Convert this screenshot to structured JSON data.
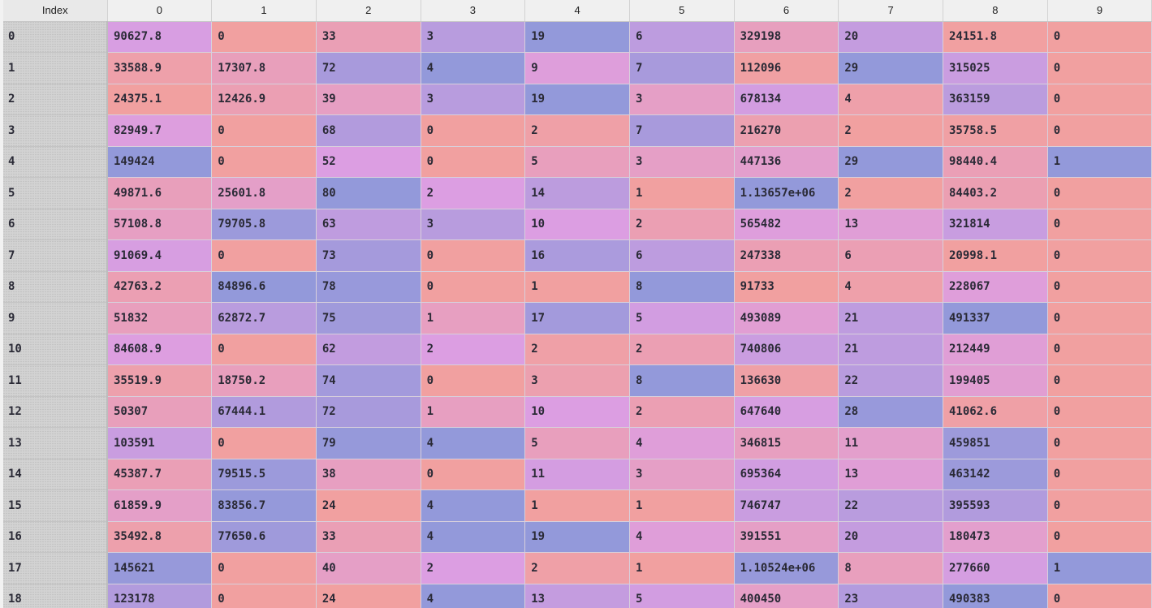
{
  "columns": {
    "index_label": "Index",
    "labels": [
      "0",
      "1",
      "2",
      "3",
      "4",
      "5",
      "6",
      "7",
      "8",
      "9"
    ]
  },
  "rows": [
    {
      "index": "0",
      "cells": [
        "90627.8",
        "0",
        "33",
        "3",
        "19",
        "6",
        "329198",
        "20",
        "24151.8",
        "0"
      ]
    },
    {
      "index": "1",
      "cells": [
        "33588.9",
        "17307.8",
        "72",
        "4",
        "9",
        "7",
        "112096",
        "29",
        "315025",
        "0"
      ]
    },
    {
      "index": "2",
      "cells": [
        "24375.1",
        "12426.9",
        "39",
        "3",
        "19",
        "3",
        "678134",
        "4",
        "363159",
        "0"
      ]
    },
    {
      "index": "3",
      "cells": [
        "82949.7",
        "0",
        "68",
        "0",
        "2",
        "7",
        "216270",
        "2",
        "35758.5",
        "0"
      ]
    },
    {
      "index": "4",
      "cells": [
        "149424",
        "0",
        "52",
        "0",
        "5",
        "3",
        "447136",
        "29",
        "98440.4",
        "1"
      ]
    },
    {
      "index": "5",
      "cells": [
        "49871.6",
        "25601.8",
        "80",
        "2",
        "14",
        "1",
        "1.13657e+06",
        "2",
        "84403.2",
        "0"
      ]
    },
    {
      "index": "6",
      "cells": [
        "57108.8",
        "79705.8",
        "63",
        "3",
        "10",
        "2",
        "565482",
        "13",
        "321814",
        "0"
      ]
    },
    {
      "index": "7",
      "cells": [
        "91069.4",
        "0",
        "73",
        "0",
        "16",
        "6",
        "247338",
        "6",
        "20998.1",
        "0"
      ]
    },
    {
      "index": "8",
      "cells": [
        "42763.2",
        "84896.6",
        "78",
        "0",
        "1",
        "8",
        "91733",
        "4",
        "228067",
        "0"
      ]
    },
    {
      "index": "9",
      "cells": [
        "51832",
        "62872.7",
        "75",
        "1",
        "17",
        "5",
        "493089",
        "21",
        "491337",
        "0"
      ]
    },
    {
      "index": "10",
      "cells": [
        "84608.9",
        "0",
        "62",
        "2",
        "2",
        "2",
        "740806",
        "21",
        "212449",
        "0"
      ]
    },
    {
      "index": "11",
      "cells": [
        "35519.9",
        "18750.2",
        "74",
        "0",
        "3",
        "8",
        "136630",
        "22",
        "199405",
        "0"
      ]
    },
    {
      "index": "12",
      "cells": [
        "50307",
        "67444.1",
        "72",
        "1",
        "10",
        "2",
        "647640",
        "28",
        "41062.6",
        "0"
      ]
    },
    {
      "index": "13",
      "cells": [
        "103591",
        "0",
        "79",
        "4",
        "5",
        "4",
        "346815",
        "11",
        "459851",
        "0"
      ]
    },
    {
      "index": "14",
      "cells": [
        "45387.7",
        "79515.5",
        "38",
        "0",
        "11",
        "3",
        "695364",
        "13",
        "463142",
        "0"
      ]
    },
    {
      "index": "15",
      "cells": [
        "61859.9",
        "83856.7",
        "24",
        "4",
        "1",
        "1",
        "746747",
        "22",
        "395593",
        "0"
      ]
    },
    {
      "index": "16",
      "cells": [
        "35492.8",
        "77650.6",
        "33",
        "4",
        "19",
        "4",
        "391551",
        "20",
        "180473",
        "0"
      ]
    },
    {
      "index": "17",
      "cells": [
        "145621",
        "0",
        "40",
        "2",
        "2",
        "1",
        "1.10524e+06",
        "8",
        "277660",
        "1"
      ]
    },
    {
      "index": "18",
      "cells": [
        "123178",
        "0",
        "24",
        "4",
        "13",
        "5",
        "400450",
        "23",
        "490383",
        "0"
      ]
    }
  ],
  "heatmap_colors": {
    "low": "#f1a0a0",
    "mid": "#dc9ee2",
    "high": "#9399da"
  }
}
